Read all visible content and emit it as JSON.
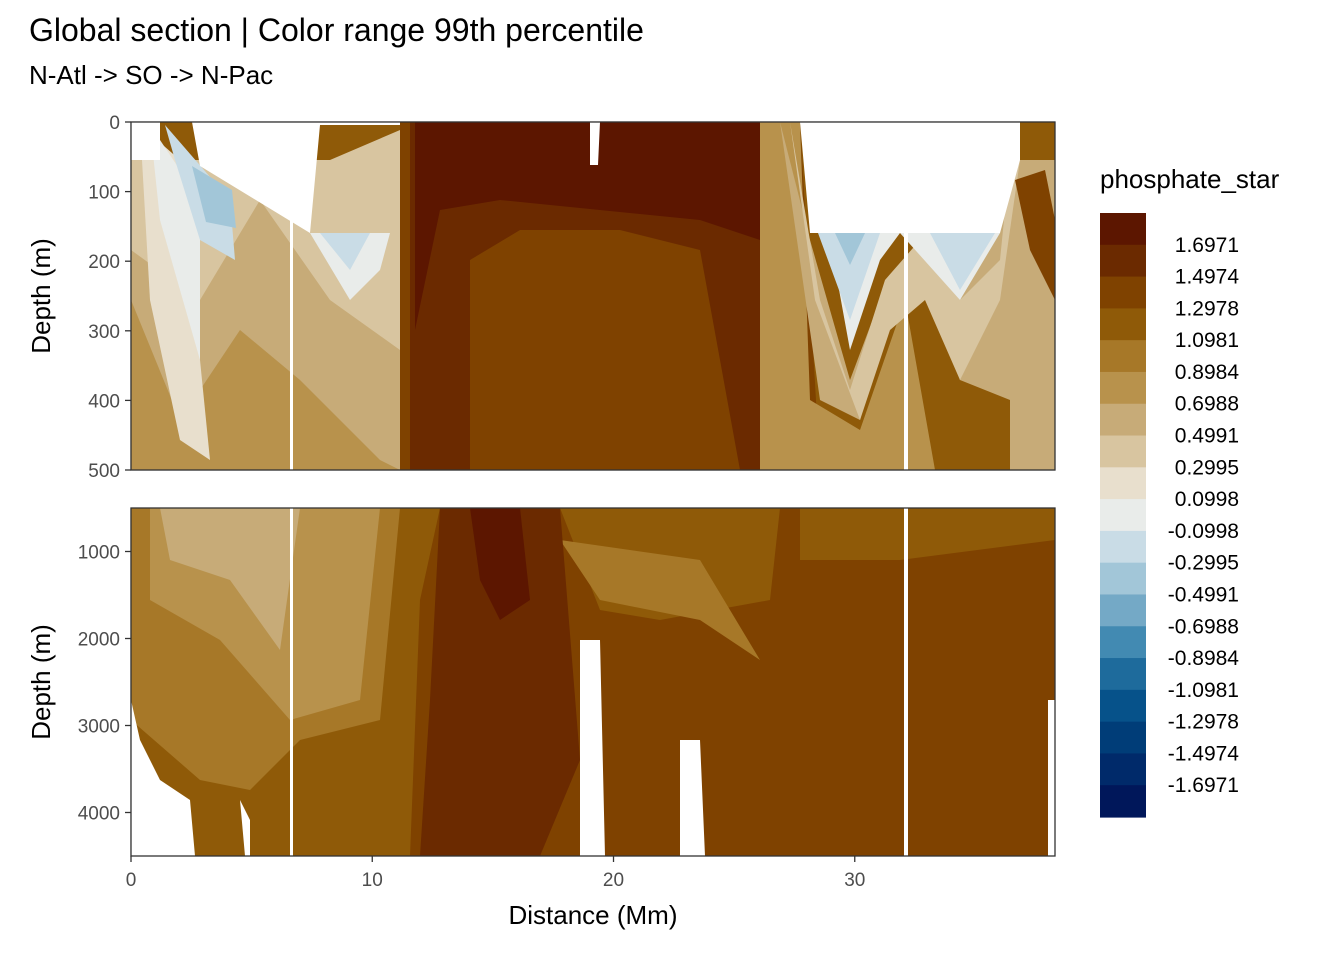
{
  "chart_data": {
    "type": "heatmap",
    "title": "Global section | Color range 99th percentile",
    "subtitle": "N-Atl -> SO -> N-Pac",
    "xlabel": "Distance (Mm)",
    "xlim": [
      0,
      38.3
    ],
    "x_ticks": [
      {
        "v": 0,
        "label": "0"
      },
      {
        "v": 10,
        "label": "10"
      },
      {
        "v": 20,
        "label": "20"
      },
      {
        "v": 30,
        "label": "30"
      }
    ],
    "panels": [
      {
        "ylabel": "Depth (m)",
        "ylim": [
          0,
          500
        ],
        "y_ticks": [
          {
            "v": 0,
            "label": "0"
          },
          {
            "v": 100,
            "label": "100"
          },
          {
            "v": 200,
            "label": "200"
          },
          {
            "v": 300,
            "label": "300"
          },
          {
            "v": 400,
            "label": "400"
          },
          {
            "v": 500,
            "label": "500"
          }
        ]
      },
      {
        "ylabel": "Depth (m)",
        "ylim": [
          500,
          4500
        ],
        "y_ticks": [
          {
            "v": 1000,
            "label": "1000"
          },
          {
            "v": 2000,
            "label": "2000"
          },
          {
            "v": 3000,
            "label": "3000"
          },
          {
            "v": 4000,
            "label": "4000"
          }
        ]
      }
    ],
    "legend": {
      "title": "phosphate_star",
      "position": "right",
      "bins": [
        {
          "label": "1.6971",
          "color": "#5c1600"
        },
        {
          "label": "1.4974",
          "color": "#6b2a00"
        },
        {
          "label": "1.2978",
          "color": "#7f4200"
        },
        {
          "label": "1.0981",
          "color": "#8f5a08"
        },
        {
          "label": "0.8984",
          "color": "#a77828"
        },
        {
          "label": "0.6988",
          "color": "#b8924c"
        },
        {
          "label": "0.4991",
          "color": "#c7ab78"
        },
        {
          "label": "0.2995",
          "color": "#d8c5a0"
        },
        {
          "label": "0.0998",
          "color": "#e8dfcd"
        },
        {
          "label": "-0.0998",
          "color": "#e9ecea"
        },
        {
          "label": "-0.2995",
          "color": "#c9dce6"
        },
        {
          "label": "-0.4991",
          "color": "#a2c6d8"
        },
        {
          "label": "-0.6988",
          "color": "#74a9c6"
        },
        {
          "label": "-0.8984",
          "color": "#428ab2"
        },
        {
          "label": "-1.0981",
          "color": "#1e6b9c"
        },
        {
          "label": "-1.2978",
          "color": "#06528a"
        },
        {
          "label": "-1.4974",
          "color": "#003d78"
        },
        {
          "label": "-1.6971",
          "color": "#002a6a"
        },
        {
          "label": "",
          "color": "#00175a"
        }
      ]
    }
  }
}
